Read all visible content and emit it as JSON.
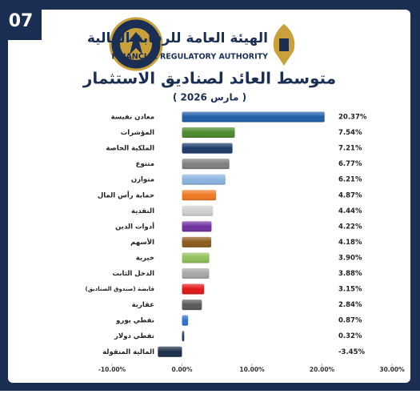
{
  "badge": "07",
  "header": {
    "authority_ar": "الهيئة العامة للرقابة المالية",
    "authority_en": "FINANCIAL REGULATORY AUTHORITY"
  },
  "chart_data": {
    "type": "barh",
    "title": "متوسط العائد لصناديق الاستثمار",
    "subtitle": "( مارس 2026 )",
    "categories": [
      "معادن نفيسة",
      "المؤشرات",
      "الملكية الخاصة",
      "متنوع",
      "متوازن",
      "حماية رأس المال",
      "النقدية",
      "أدوات الدين",
      "الأسهم",
      "خيرية",
      "الدخل الثابت",
      "قابضة (صندوق الصناديق)",
      "عقارية",
      "نفطي يورو",
      "نفطي دولار",
      "المالية المنقولة"
    ],
    "values": [
      20.37,
      7.54,
      7.21,
      6.77,
      6.21,
      4.87,
      4.44,
      4.22,
      4.18,
      3.9,
      3.88,
      3.15,
      2.84,
      0.87,
      0.32,
      -3.45
    ],
    "value_labels": [
      "20.37%",
      "7.54%",
      "7.21%",
      "6.77%",
      "6.21%",
      "4.87%",
      "4.44%",
      "4.22%",
      "4.18%",
      "3.90%",
      "3.88%",
      "3.15%",
      "2.84%",
      "0.87%",
      "0.32%",
      "-3.45%"
    ],
    "colors": [
      "#1f5fa8",
      "#4a8a2a",
      "#1d3a6b",
      "#7f7f7f",
      "#8ab4e0",
      "#f07820",
      "#d0d0d0",
      "#7030a0",
      "#8b5a1c",
      "#92c05a",
      "#a6a6a6",
      "#e01818",
      "#595959",
      "#2f6fd0",
      "#1f3864",
      "#1c2e4a"
    ],
    "xlim": [
      -10,
      30
    ],
    "xticks": [
      {
        "value": -10,
        "label": "-10.00%"
      },
      {
        "value": 0,
        "label": "0.00%"
      },
      {
        "value": 10,
        "label": "10.00%"
      },
      {
        "value": 20,
        "label": "20.00%"
      },
      {
        "value": 30,
        "label": "30.00%"
      }
    ]
  }
}
